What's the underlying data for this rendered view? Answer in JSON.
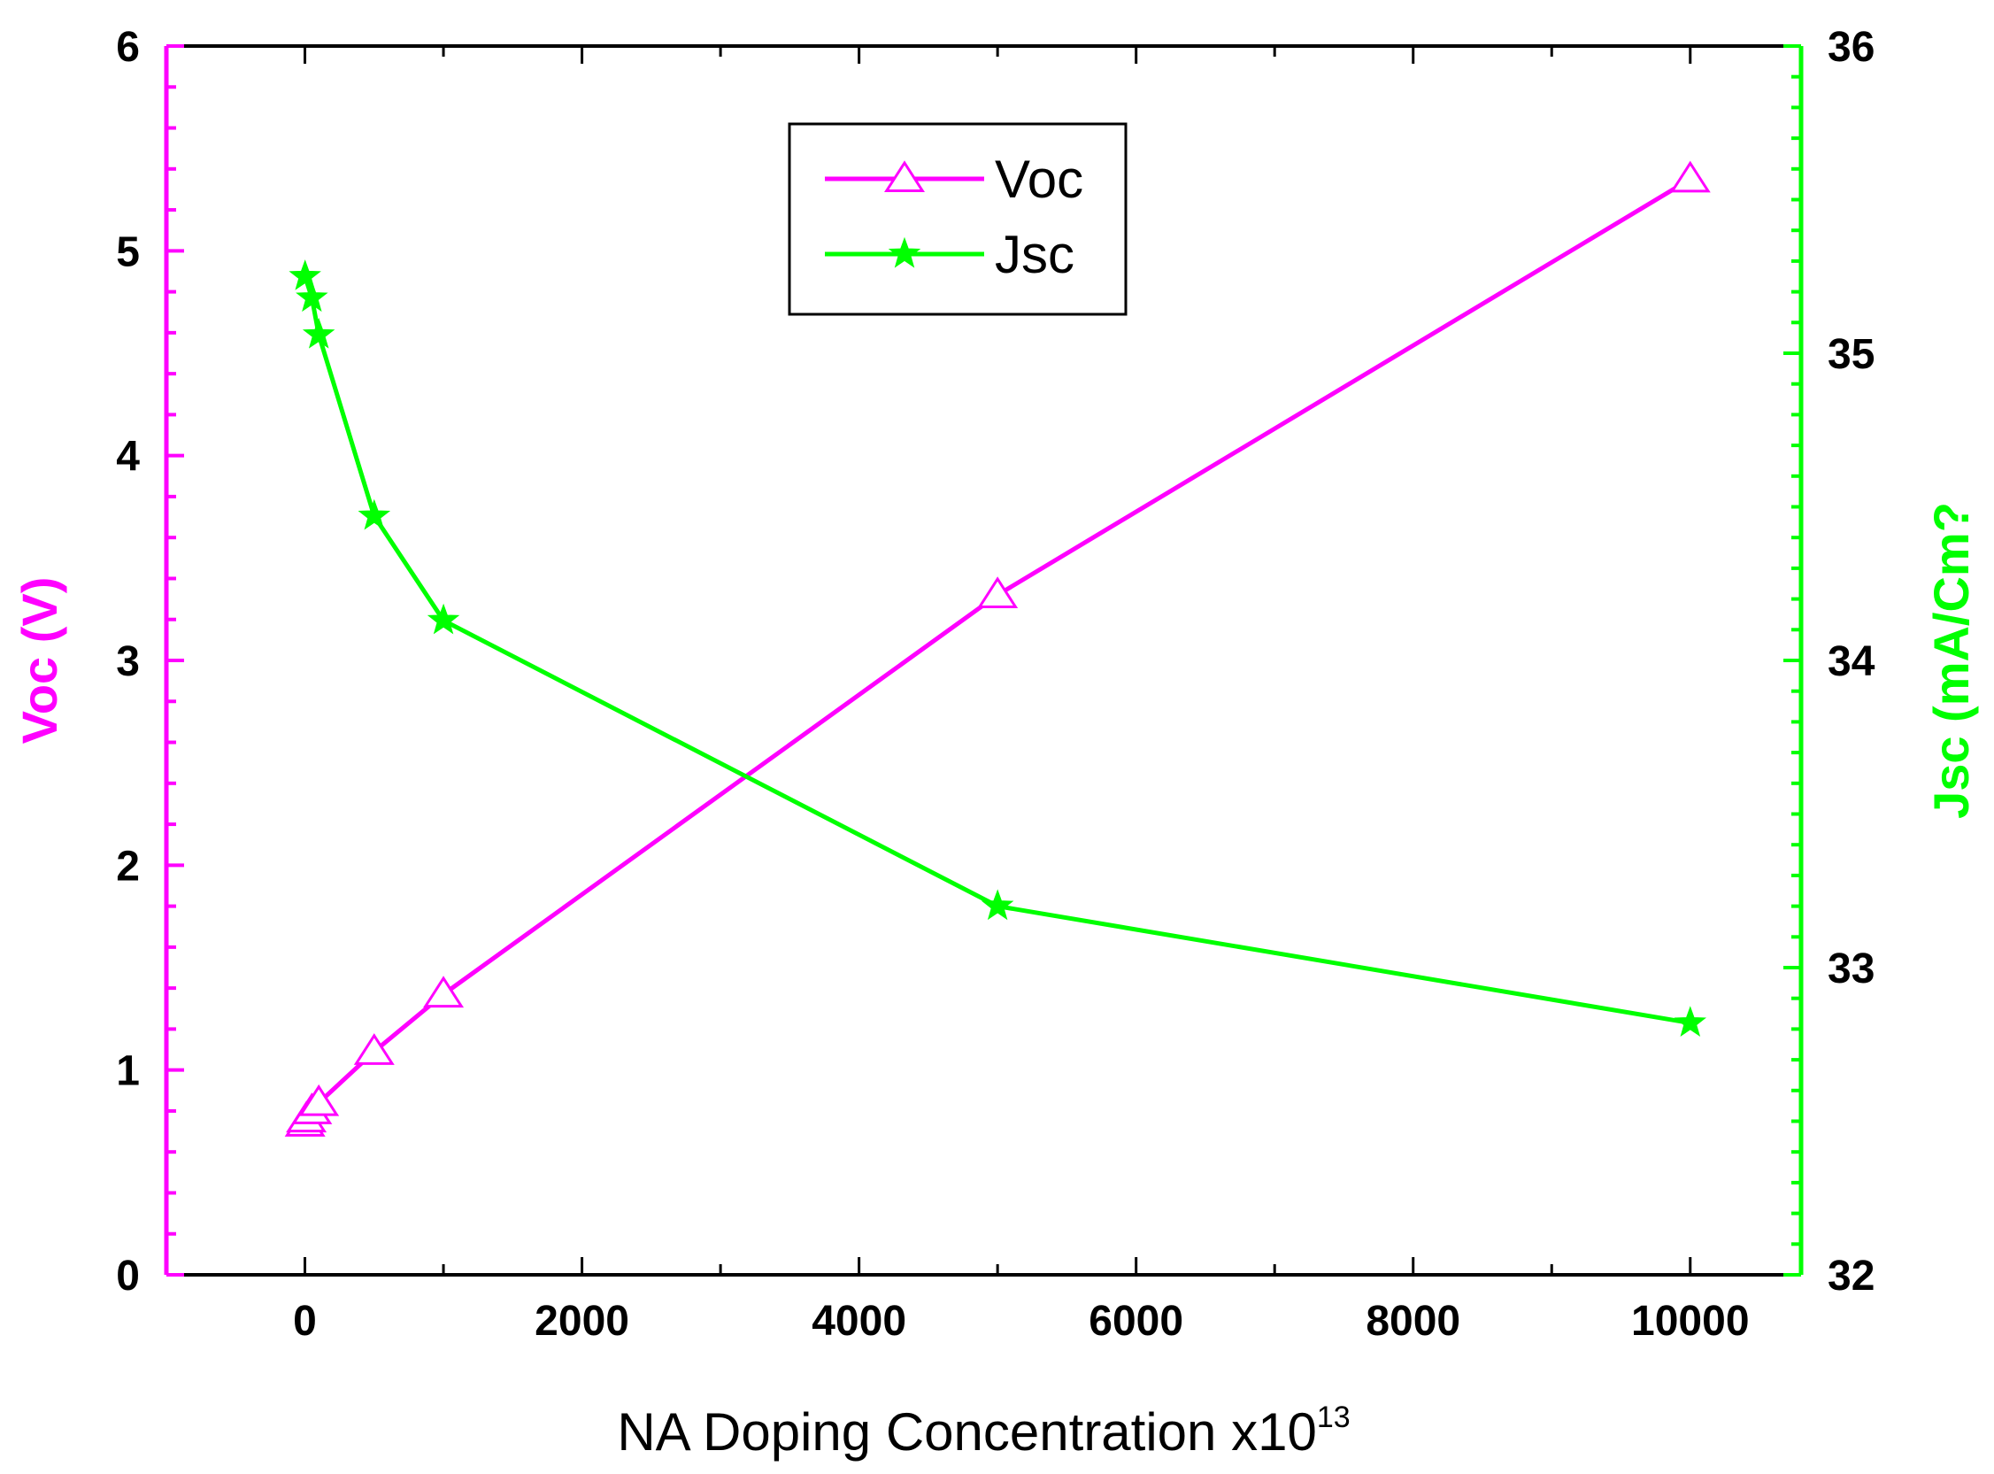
{
  "chart_data": {
    "type": "line",
    "title": "",
    "xlabel": "NA Doping Concentration x10",
    "xlabel_superscript": "13",
    "xlim": [
      -1000,
      10800
    ],
    "x_ticks": [
      0,
      2000,
      4000,
      6000,
      8000,
      10000
    ],
    "grid": false,
    "legend_position": "top-center",
    "axes": {
      "left": {
        "label": "Voc (V)",
        "color": "#ff00ff",
        "ylim": [
          0,
          6
        ],
        "ticks": [
          0,
          1,
          2,
          3,
          4,
          5,
          6
        ]
      },
      "right": {
        "label": "Jsc (mA/Cm?",
        "color": "#00ff00",
        "ylim": [
          32,
          36
        ],
        "ticks": [
          32,
          33,
          34,
          35,
          36
        ]
      }
    },
    "series": [
      {
        "name": "Voc",
        "axis": "left",
        "color": "#ff00ff",
        "marker": "open-triangle",
        "x": [
          1,
          10,
          50,
          100,
          500,
          1000,
          5000,
          10000
        ],
        "y": [
          0.74,
          0.76,
          0.8,
          0.84,
          1.09,
          1.37,
          3.32,
          5.35
        ]
      },
      {
        "name": "Jsc",
        "axis": "right",
        "color": "#00ff00",
        "marker": "filled-star",
        "x": [
          1,
          50,
          100,
          500,
          1000,
          5000,
          10000
        ],
        "y": [
          35.25,
          35.18,
          35.06,
          34.47,
          34.13,
          33.2,
          32.82
        ]
      }
    ]
  }
}
